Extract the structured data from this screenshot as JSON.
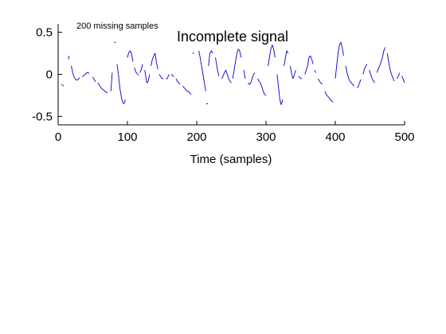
{
  "chart_data": {
    "type": "line",
    "title": "Incomplete signal",
    "annotation": "200 missing samples",
    "xlabel": "Time (samples)",
    "ylabel": "",
    "xlim": [
      0,
      500
    ],
    "ylim": [
      -0.6,
      0.6
    ],
    "xticks": [
      0,
      100,
      200,
      300,
      400,
      500
    ],
    "xtick_labels": [
      "0",
      "100",
      "200",
      "300",
      "400",
      "500"
    ],
    "yticks": [
      -0.5,
      0,
      0.5
    ],
    "ytick_labels": [
      "-0.5",
      "0",
      "0.5"
    ],
    "grid": false,
    "legend": "none",
    "series": [
      {
        "color": "#0000cc",
        "segments": [
          [
            [
              5,
              -0.12
            ],
            [
              8,
              -0.14
            ]
          ],
          [
            [
              15,
              0.18
            ],
            [
              16,
              0.22
            ]
          ],
          [
            [
              19,
              0.1
            ],
            [
              21,
              0.02
            ],
            [
              23,
              -0.03
            ],
            [
              25,
              -0.06
            ],
            [
              27,
              -0.07
            ],
            [
              29,
              -0.06
            ],
            [
              31,
              -0.04
            ]
          ],
          [
            [
              35,
              -0.03
            ],
            [
              37,
              -0.01
            ],
            [
              39,
              0.0
            ],
            [
              41,
              0.02
            ],
            [
              43,
              0.02
            ],
            [
              45,
              0.01
            ]
          ],
          [
            [
              50,
              -0.03
            ],
            [
              52,
              -0.06
            ],
            [
              54,
              -0.09
            ]
          ],
          [
            [
              57,
              -0.1
            ],
            [
              59,
              -0.12
            ],
            [
              61,
              -0.15
            ],
            [
              63,
              -0.17
            ],
            [
              65,
              -0.18
            ],
            [
              67,
              -0.2
            ],
            [
              69,
              -0.21
            ],
            [
              71,
              -0.22
            ]
          ],
          [
            [
              76,
              -0.2
            ],
            [
              77,
              -0.1
            ],
            [
              78,
              0.02
            ]
          ],
          [
            [
              82,
              0.38
            ]
          ],
          [
            [
              85,
              0.12
            ],
            [
              87,
              0.0
            ],
            [
              89,
              -0.16
            ],
            [
              91,
              -0.26
            ],
            [
              93,
              -0.33
            ],
            [
              95,
              -0.35
            ],
            [
              97,
              -0.3
            ]
          ],
          [
            [
              100,
              0.2
            ],
            [
              102,
              0.26
            ],
            [
              104,
              0.28
            ],
            [
              106,
              0.24
            ],
            [
              108,
              0.15
            ]
          ],
          [
            [
              110,
              0.08
            ],
            [
              112,
              0.03
            ],
            [
              114,
              0.01
            ],
            [
              116,
              -0.01
            ]
          ],
          [
            [
              118,
              0.02
            ],
            [
              120,
              0.06
            ],
            [
              122,
              0.12
            ]
          ],
          [
            [
              125,
              0.05
            ],
            [
              126,
              0.0
            ],
            [
              127,
              -0.06
            ],
            [
              128,
              -0.1
            ],
            [
              130,
              -0.08
            ],
            [
              132,
              0.0
            ]
          ],
          [
            [
              134,
              0.1
            ],
            [
              136,
              0.18
            ],
            [
              138,
              0.22
            ],
            [
              140,
              0.25
            ],
            [
              142,
              0.14
            ],
            [
              144,
              0.06
            ]
          ],
          [
            [
              146,
              0.0
            ],
            [
              148,
              -0.03
            ],
            [
              150,
              -0.05
            ],
            [
              152,
              -0.05
            ]
          ],
          [
            [
              156,
              -0.06
            ],
            [
              158,
              -0.04
            ],
            [
              160,
              0.0
            ]
          ],
          [
            [
              163,
              0.0
            ],
            [
              165,
              -0.01
            ],
            [
              167,
              -0.03
            ]
          ],
          [
            [
              170,
              -0.05
            ],
            [
              172,
              -0.08
            ],
            [
              174,
              -0.1
            ],
            [
              176,
              -0.12
            ]
          ],
          [
            [
              180,
              -0.14
            ],
            [
              182,
              -0.16
            ],
            [
              184,
              -0.18
            ],
            [
              186,
              -0.2
            ],
            [
              188,
              -0.2
            ],
            [
              190,
              -0.22
            ],
            [
              192,
              -0.24
            ]
          ],
          [
            [
              195,
              0.25
            ]
          ],
          [
            [
              203,
              0.28
            ],
            [
              205,
              0.2
            ],
            [
              207,
              0.1
            ],
            [
              209,
              0.0
            ],
            [
              211,
              -0.1
            ],
            [
              213,
              -0.2
            ]
          ],
          [
            [
              215,
              -0.35
            ]
          ],
          [
            [
              217,
              0.1
            ],
            [
              219,
              0.25
            ],
            [
              221,
              0.28
            ],
            [
              223,
              0.25
            ]
          ],
          [
            [
              227,
              0.2
            ],
            [
              230,
              0.05
            ],
            [
              232,
              -0.02
            ]
          ],
          [
            [
              236,
              -0.05
            ],
            [
              238,
              -0.02
            ],
            [
              240,
              0.02
            ],
            [
              242,
              0.05
            ],
            [
              244,
              0.0
            ],
            [
              246,
              -0.05
            ],
            [
              248,
              -0.08
            ],
            [
              250,
              -0.1
            ]
          ],
          [
            [
              252,
              -0.05
            ],
            [
              254,
              0.05
            ],
            [
              256,
              0.15
            ],
            [
              258,
              0.25
            ],
            [
              260,
              0.3
            ],
            [
              262,
              0.28
            ],
            [
              264,
              0.2
            ]
          ],
          [
            [
              268,
              0.05
            ],
            [
              270,
              -0.05
            ]
          ],
          [
            [
              274,
              -0.1
            ],
            [
              276,
              -0.12
            ],
            [
              278,
              -0.1
            ],
            [
              280,
              -0.05
            ],
            [
              282,
              0.0
            ],
            [
              284,
              0.02
            ]
          ],
          [
            [
              288,
              -0.05
            ],
            [
              290,
              -0.08
            ],
            [
              292,
              -0.1
            ],
            [
              294,
              -0.15
            ],
            [
              296,
              -0.2
            ],
            [
              298,
              -0.24
            ],
            [
              300,
              -0.25
            ]
          ],
          [
            [
              303,
              0.1
            ],
            [
              305,
              0.2
            ],
            [
              307,
              0.3
            ],
            [
              309,
              0.35
            ],
            [
              311,
              0.3
            ],
            [
              313,
              0.2
            ]
          ],
          [
            [
              316,
              0.0
            ],
            [
              318,
              -0.15
            ],
            [
              320,
              -0.3
            ],
            [
              322,
              -0.36
            ],
            [
              324,
              -0.3
            ]
          ],
          [
            [
              326,
              0.1
            ],
            [
              328,
              0.2
            ],
            [
              330,
              0.28
            ],
            [
              332,
              0.25
            ]
          ],
          [
            [
              335,
              0.1
            ],
            [
              337,
              0.0
            ],
            [
              339,
              -0.05
            ],
            [
              341,
              0.0
            ],
            [
              343,
              0.05
            ]
          ],
          [
            [
              347,
              -0.02
            ],
            [
              350,
              -0.05
            ],
            [
              352,
              -0.05
            ]
          ],
          [
            [
              356,
              0.0
            ],
            [
              358,
              0.05
            ],
            [
              360,
              0.1
            ],
            [
              362,
              0.2
            ],
            [
              364,
              0.22
            ],
            [
              366,
              0.18
            ],
            [
              368,
              0.12
            ]
          ],
          [
            [
              370,
              0.05
            ],
            [
              372,
              0.02
            ]
          ],
          [
            [
              375,
              -0.05
            ],
            [
              377,
              -0.08
            ],
            [
              379,
              -0.1
            ],
            [
              381,
              -0.12
            ]
          ],
          [
            [
              385,
              -0.2
            ],
            [
              387,
              -0.24
            ],
            [
              389,
              -0.26
            ],
            [
              391,
              -0.28
            ],
            [
              393,
              -0.3
            ],
            [
              395,
              -0.32
            ],
            [
              397,
              -0.33
            ]
          ],
          [
            [
              400,
              -0.05
            ],
            [
              402,
              0.1
            ],
            [
              404,
              0.25
            ],
            [
              406,
              0.35
            ],
            [
              408,
              0.38
            ],
            [
              410,
              0.32
            ],
            [
              412,
              0.22
            ]
          ],
          [
            [
              415,
              0.1
            ],
            [
              417,
              0.02
            ],
            [
              419,
              -0.04
            ],
            [
              421,
              -0.08
            ],
            [
              423,
              -0.1
            ],
            [
              425,
              -0.12
            ],
            [
              427,
              -0.14
            ]
          ],
          [
            [
              431,
              -0.16
            ],
            [
              433,
              -0.15
            ],
            [
              435,
              -0.1
            ],
            [
              437,
              -0.06
            ]
          ],
          [
            [
              440,
              0.0
            ],
            [
              442,
              0.06
            ],
            [
              444,
              0.1
            ],
            [
              446,
              0.12
            ]
          ],
          [
            [
              449,
              0.05
            ],
            [
              451,
              0.0
            ],
            [
              453,
              -0.05
            ],
            [
              455,
              -0.08
            ],
            [
              457,
              -0.1
            ]
          ],
          [
            [
              460,
              0.02
            ],
            [
              462,
              0.06
            ],
            [
              464,
              0.1
            ],
            [
              466,
              0.15
            ],
            [
              468,
              0.2
            ],
            [
              470,
              0.28
            ],
            [
              472,
              0.32
            ]
          ],
          [
            [
              475,
              0.25
            ],
            [
              477,
              0.15
            ],
            [
              479,
              0.06
            ],
            [
              481,
              0.0
            ],
            [
              483,
              -0.04
            ],
            [
              485,
              -0.08
            ]
          ],
          [
            [
              489,
              -0.05
            ],
            [
              491,
              -0.02
            ],
            [
              493,
              0.02
            ]
          ],
          [
            [
              496,
              -0.02
            ],
            [
              498,
              -0.06
            ],
            [
              500,
              -0.1
            ]
          ]
        ]
      }
    ]
  }
}
